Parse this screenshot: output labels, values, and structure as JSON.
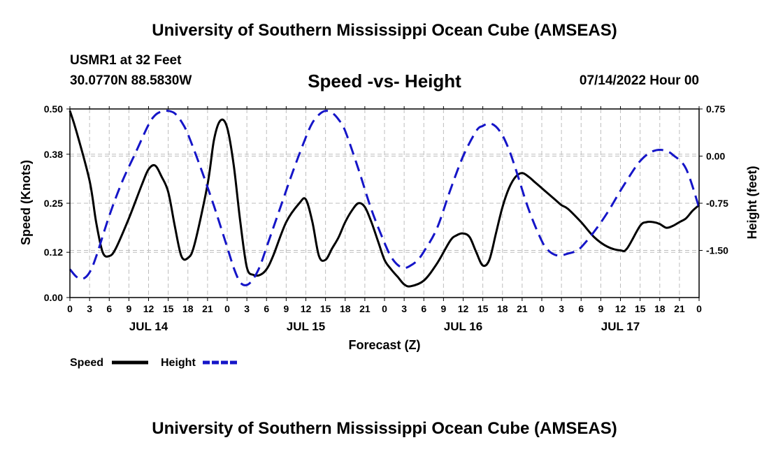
{
  "header": {
    "title": "University of Southern Mississippi Ocean Cube (AMSEAS)",
    "station": "USMR1 at 32 Feet",
    "coords": "30.0770N  88.5830W",
    "subtitle": "Speed -vs- Height",
    "datetime": "07/14/2022 Hour 00"
  },
  "footer": {
    "title": "University of Southern Mississippi Ocean Cube (AMSEAS)"
  },
  "chart_data": {
    "type": "line",
    "title": "Speed -vs- Height",
    "xlabel": "Forecast (Z)",
    "ylabel": "Speed (Knots)",
    "y2label": "Height (feet)",
    "grid": true,
    "xlim": [
      0,
      96
    ],
    "ylim": [
      0,
      0.5
    ],
    "y2lim": [
      -2.25,
      0.75
    ],
    "x_ticks": [
      0,
      3,
      6,
      9,
      12,
      15,
      18,
      21,
      24,
      27,
      30,
      33,
      36,
      39,
      42,
      45,
      48,
      51,
      54,
      57,
      60,
      63,
      66,
      69,
      72,
      75,
      78,
      81,
      84,
      87,
      90,
      93,
      96
    ],
    "x_tick_labels": [
      "0",
      "3",
      "6",
      "9",
      "12",
      "15",
      "18",
      "21",
      "0",
      "3",
      "6",
      "9",
      "12",
      "15",
      "18",
      "21",
      "0",
      "3",
      "6",
      "9",
      "12",
      "15",
      "18",
      "21",
      "0",
      "3",
      "6",
      "9",
      "12",
      "15",
      "18",
      "21",
      "0"
    ],
    "day_labels": [
      {
        "x": 12,
        "label": "JUL 14"
      },
      {
        "x": 36,
        "label": "JUL 15"
      },
      {
        "x": 60,
        "label": "JUL 16"
      },
      {
        "x": 84,
        "label": "JUL 17"
      }
    ],
    "y_ticks": [
      0.0,
      0.12,
      0.25,
      0.38,
      0.5
    ],
    "y_tick_labels": [
      "0.00",
      "0.12",
      "0.25",
      "0.38",
      "0.50"
    ],
    "y2_ticks": [
      -1.5,
      -0.75,
      0.0,
      0.75
    ],
    "y2_tick_labels": [
      "-1.50",
      "-0.75",
      "0.00",
      "0.75"
    ],
    "series": [
      {
        "name": "Speed",
        "axis": "left",
        "color": "#000000",
        "dash": false,
        "x": [
          0,
          1,
          3,
          4,
          5,
          6,
          7,
          9,
          11,
          12,
          13,
          14,
          15,
          16,
          17,
          18,
          19,
          21,
          22,
          23,
          24,
          25,
          26,
          27,
          28,
          29,
          30,
          31,
          33,
          35,
          36,
          37,
          38,
          39,
          40,
          41,
          42,
          43,
          44,
          45,
          46,
          47,
          48,
          49,
          50,
          51,
          52,
          54,
          56,
          58,
          59,
          60,
          61,
          62,
          63,
          64,
          65,
          66,
          67,
          68,
          69,
          70,
          71,
          72,
          73,
          74,
          75,
          76,
          78,
          80,
          82,
          84,
          85,
          87,
          88,
          89,
          90,
          91,
          92,
          93,
          94,
          95,
          96
        ],
        "values": [
          0.495,
          0.44,
          0.31,
          0.2,
          0.12,
          0.11,
          0.13,
          0.21,
          0.3,
          0.34,
          0.35,
          0.32,
          0.28,
          0.19,
          0.11,
          0.105,
          0.14,
          0.3,
          0.42,
          0.47,
          0.45,
          0.35,
          0.2,
          0.08,
          0.06,
          0.06,
          0.075,
          0.11,
          0.2,
          0.25,
          0.26,
          0.2,
          0.11,
          0.1,
          0.13,
          0.16,
          0.2,
          0.23,
          0.25,
          0.24,
          0.2,
          0.15,
          0.1,
          0.075,
          0.055,
          0.035,
          0.03,
          0.045,
          0.09,
          0.15,
          0.165,
          0.17,
          0.16,
          0.12,
          0.085,
          0.1,
          0.17,
          0.24,
          0.29,
          0.32,
          0.33,
          0.32,
          0.305,
          0.29,
          0.275,
          0.26,
          0.245,
          0.235,
          0.2,
          0.16,
          0.135,
          0.125,
          0.13,
          0.19,
          0.2,
          0.2,
          0.195,
          0.185,
          0.19,
          0.2,
          0.21,
          0.23,
          0.245
        ]
      },
      {
        "name": "Height",
        "axis": "right",
        "color": "#1515c8",
        "dash": true,
        "x": [
          0,
          1,
          2,
          3,
          4,
          6,
          8,
          10,
          12,
          13,
          14,
          15,
          16,
          17,
          18,
          20,
          22,
          24,
          25,
          26,
          27,
          28,
          29,
          30,
          32,
          34,
          36,
          37,
          38,
          39,
          40,
          41,
          42,
          44,
          46,
          48,
          49,
          50,
          51,
          52,
          53,
          54,
          56,
          58,
          60,
          62,
          63,
          64,
          65,
          66,
          67,
          68,
          70,
          72,
          73,
          74,
          75,
          76,
          77,
          78,
          80,
          82,
          84,
          86,
          87,
          88,
          89,
          90,
          91,
          92,
          94,
          96
        ],
        "values": [
          -1.8,
          -1.92,
          -1.95,
          -1.85,
          -1.6,
          -0.95,
          -0.4,
          0.05,
          0.5,
          0.65,
          0.71,
          0.72,
          0.68,
          0.55,
          0.35,
          -0.2,
          -0.8,
          -1.45,
          -1.78,
          -2.01,
          -2.05,
          -1.95,
          -1.75,
          -1.45,
          -0.85,
          -0.25,
          0.3,
          0.53,
          0.66,
          0.72,
          0.69,
          0.58,
          0.4,
          -0.2,
          -0.85,
          -1.38,
          -1.6,
          -1.73,
          -1.78,
          -1.74,
          -1.66,
          -1.52,
          -1.15,
          -0.55,
          0.0,
          0.4,
          0.48,
          0.52,
          0.47,
          0.33,
          0.1,
          -0.2,
          -0.85,
          -1.35,
          -1.5,
          -1.57,
          -1.58,
          -1.55,
          -1.52,
          -1.45,
          -1.2,
          -0.9,
          -0.55,
          -0.22,
          -0.08,
          0.02,
          0.08,
          0.1,
          0.08,
          0.02,
          -0.2,
          -0.82
        ]
      }
    ],
    "legend": [
      {
        "label": "Speed",
        "color": "#000000",
        "dash": false
      },
      {
        "label": "Height",
        "color": "#1515c8",
        "dash": true
      }
    ]
  }
}
